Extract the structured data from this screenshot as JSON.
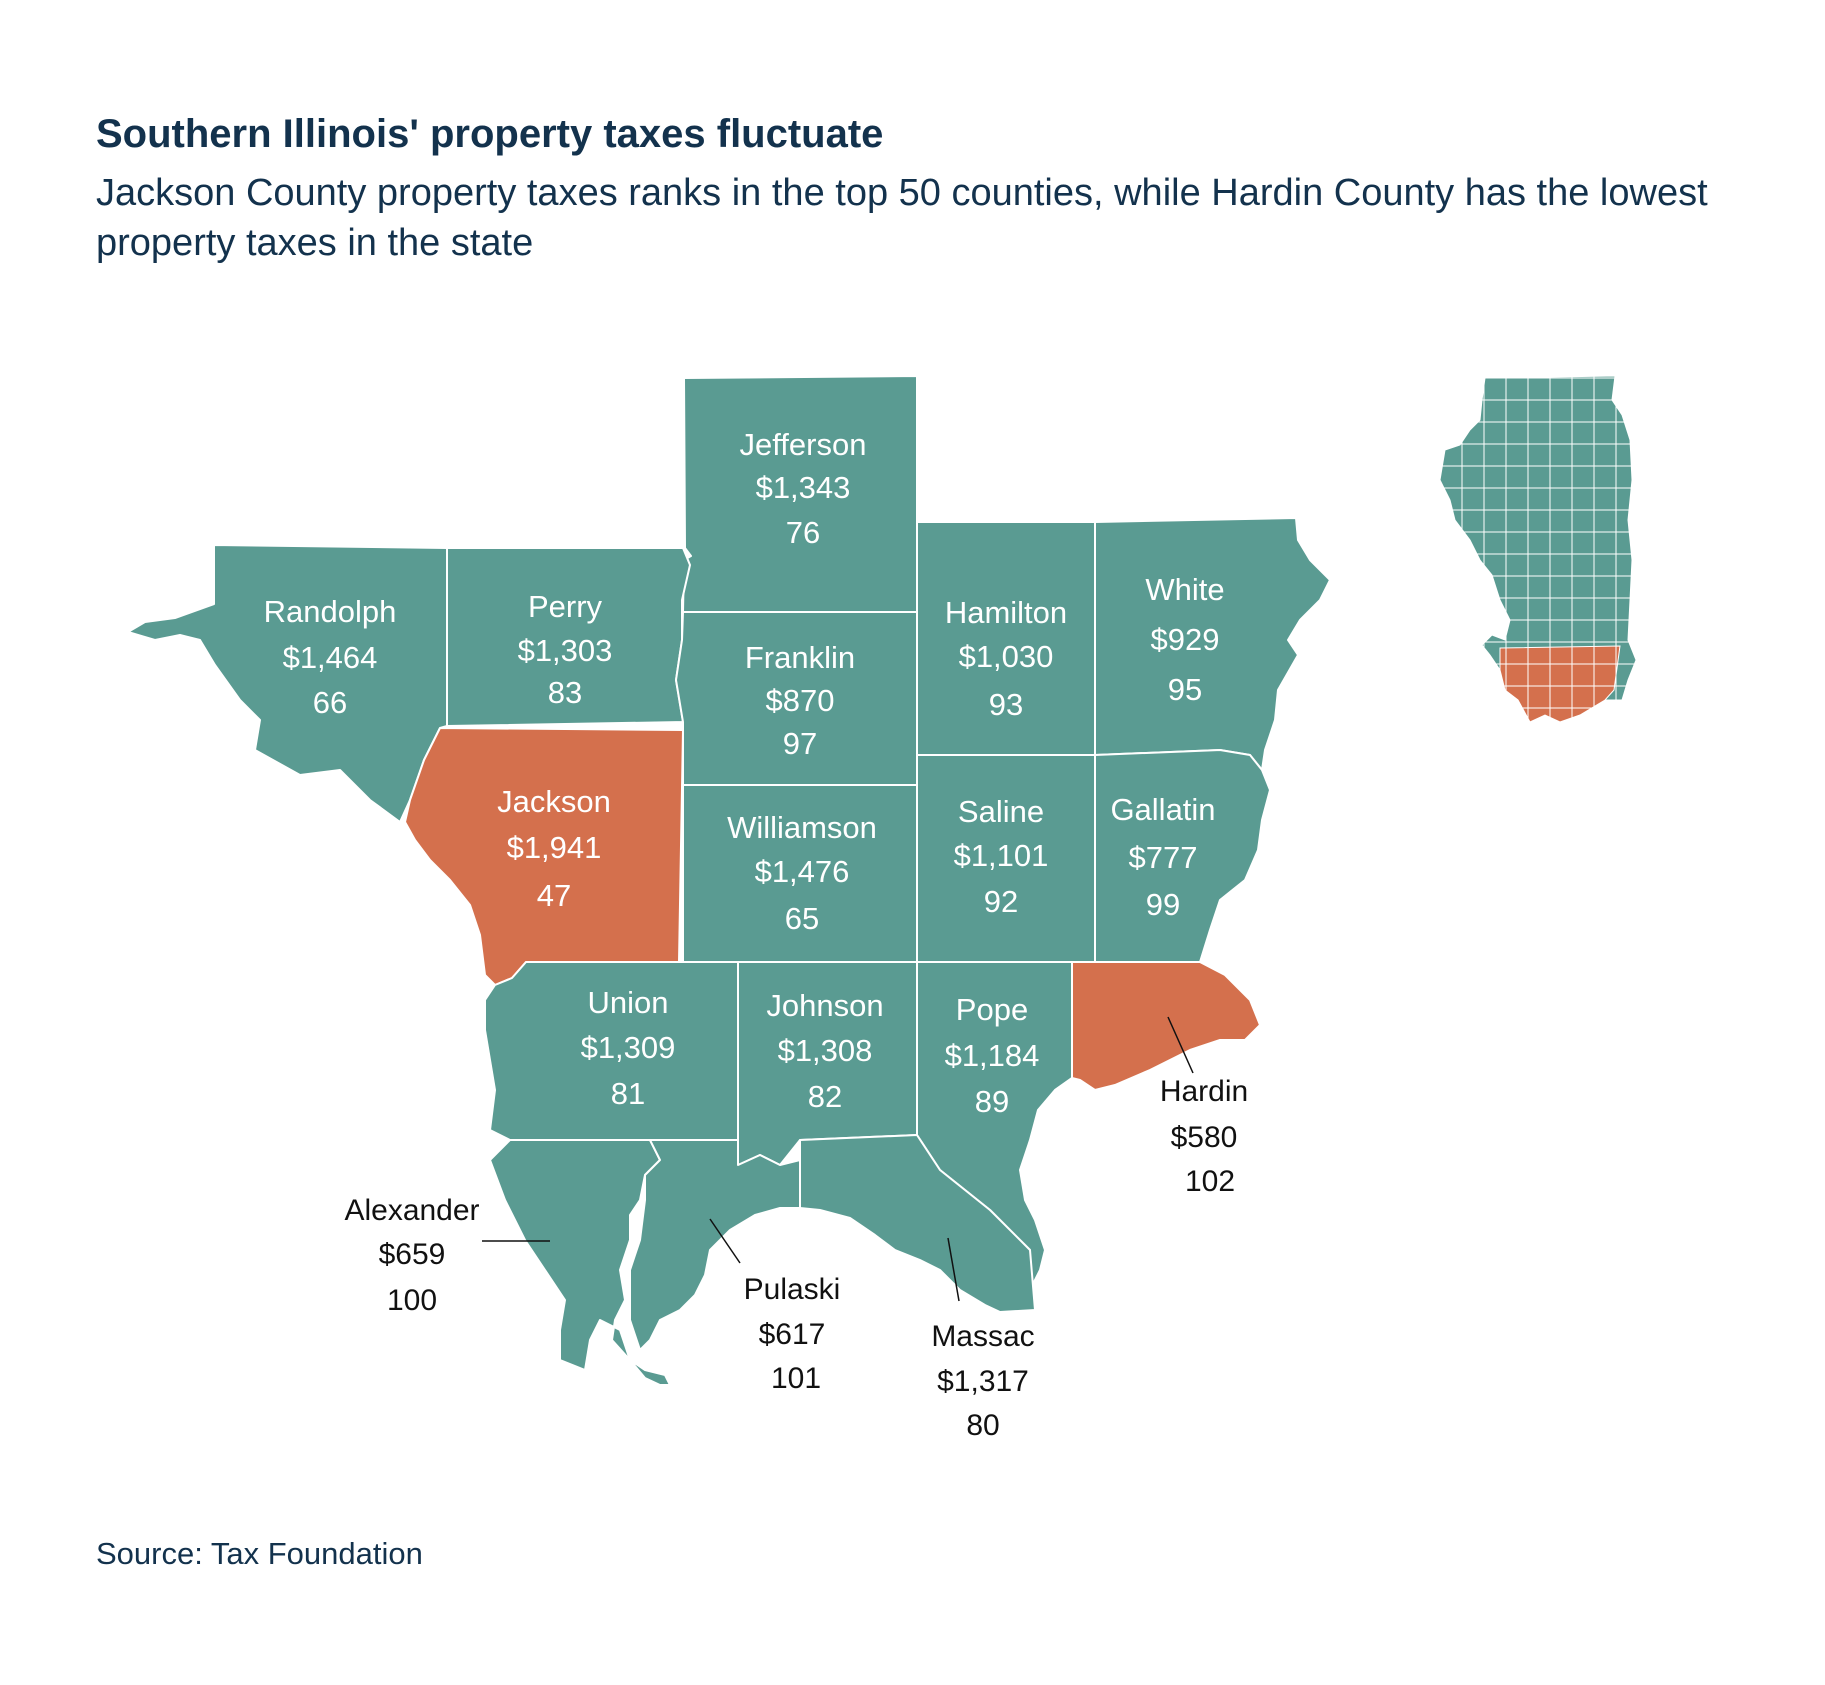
{
  "title": "Southern Illinois' property taxes fluctuate",
  "subtitle": "Jackson County property taxes ranks in the top 50 counties,  while Hardin County has the lowest property taxes in the state",
  "source": "Source: Tax Foundation",
  "colors": {
    "default": "#5a9b92",
    "highlight": "#d4704d",
    "text": "#13324d"
  },
  "counties": {
    "jefferson": {
      "name": "Jefferson",
      "tax": "$1,343",
      "rank": "76",
      "highlight": false
    },
    "randolph": {
      "name": "Randolph",
      "tax": "$1,464",
      "rank": "66",
      "highlight": false
    },
    "perry": {
      "name": "Perry",
      "tax": "$1,303",
      "rank": "83",
      "highlight": false
    },
    "franklin": {
      "name": "Franklin",
      "tax": "$870",
      "rank": "97",
      "highlight": false
    },
    "hamilton": {
      "name": "Hamilton",
      "tax": "$1,030",
      "rank": "93",
      "highlight": false
    },
    "white": {
      "name": "White",
      "tax": "$929",
      "rank": "95",
      "highlight": false
    },
    "jackson": {
      "name": "Jackson",
      "tax": "$1,941",
      "rank": "47",
      "highlight": true
    },
    "williamson": {
      "name": "Williamson",
      "tax": "$1,476",
      "rank": "65",
      "highlight": false
    },
    "saline": {
      "name": "Saline",
      "tax": "$1,101",
      "rank": "92",
      "highlight": false
    },
    "gallatin": {
      "name": "Gallatin",
      "tax": "$777",
      "rank": "99",
      "highlight": false
    },
    "union": {
      "name": "Union",
      "tax": "$1,309",
      "rank": "81",
      "highlight": false
    },
    "johnson": {
      "name": "Johnson",
      "tax": "$1,308",
      "rank": "82",
      "highlight": false
    },
    "pope": {
      "name": "Pope",
      "tax": "$1,184",
      "rank": "89",
      "highlight": false
    },
    "hardin": {
      "name": "Hardin",
      "tax": "$580",
      "rank": "102",
      "highlight": true
    },
    "alexander": {
      "name": "Alexander",
      "tax": "$659",
      "rank": "100",
      "highlight": false
    },
    "pulaski": {
      "name": "Pulaski",
      "tax": "$617",
      "rank": "101",
      "highlight": false
    },
    "massac": {
      "name": "Massac",
      "tax": "$1,317",
      "rank": "80",
      "highlight": false
    }
  }
}
